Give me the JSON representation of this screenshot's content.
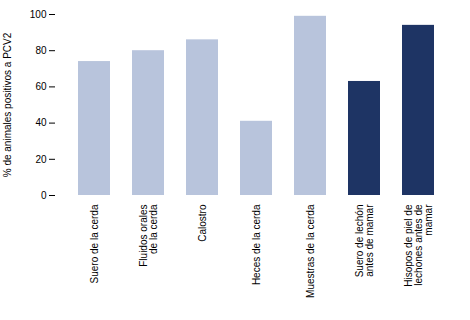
{
  "chart_data": {
    "type": "bar",
    "categories": [
      "Suero de la cerda",
      "Fluidos orales\nde la cerda",
      "Calostro",
      "Heces de la cerda",
      "Muestras de la cerda",
      "Suero de lechón\nantes de mamar",
      "Hisopos de piel de\nlechones antes de\nmamar"
    ],
    "values": [
      74,
      80,
      86,
      41,
      99,
      63,
      94
    ],
    "colors": [
      "#b8c4dc",
      "#b8c4dc",
      "#b8c4dc",
      "#b8c4dc",
      "#b8c4dc",
      "#1e3464",
      "#1e3464"
    ],
    "ylabel": "% de animales positivos a PCV2",
    "ylim": [
      0,
      100
    ],
    "yticks": [
      0,
      20,
      40,
      60,
      80,
      100
    ],
    "grid": false
  }
}
